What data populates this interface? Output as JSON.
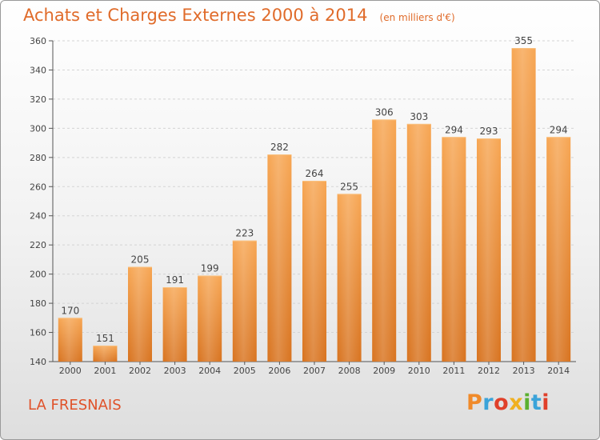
{
  "chart_data": {
    "type": "bar",
    "title": "Achats et Charges Externes 2000 à 2014",
    "subtitle": "(en milliers d'€)",
    "categories": [
      "2000",
      "2001",
      "2002",
      "2003",
      "2004",
      "2005",
      "2006",
      "2007",
      "2008",
      "2009",
      "2010",
      "2011",
      "2012",
      "2013",
      "2014"
    ],
    "values": [
      170,
      151,
      205,
      191,
      199,
      223,
      282,
      264,
      255,
      306,
      303,
      294,
      293,
      355,
      294
    ],
    "ylim": [
      140,
      360
    ],
    "yticks": [
      140,
      160,
      180,
      200,
      220,
      240,
      260,
      280,
      300,
      320,
      340,
      360
    ],
    "grid": true,
    "xlabel": "",
    "ylabel": "",
    "bar_color": "#f5a04a"
  },
  "footer": {
    "commune": "LA FRESNAIS",
    "logo_text": "Proxiti",
    "logo_colors": [
      "#f08a2a",
      "#3ba3d9",
      "#e0402a",
      "#f0b020",
      "#5bb030",
      "#3ba3d9",
      "#e0402a"
    ]
  }
}
